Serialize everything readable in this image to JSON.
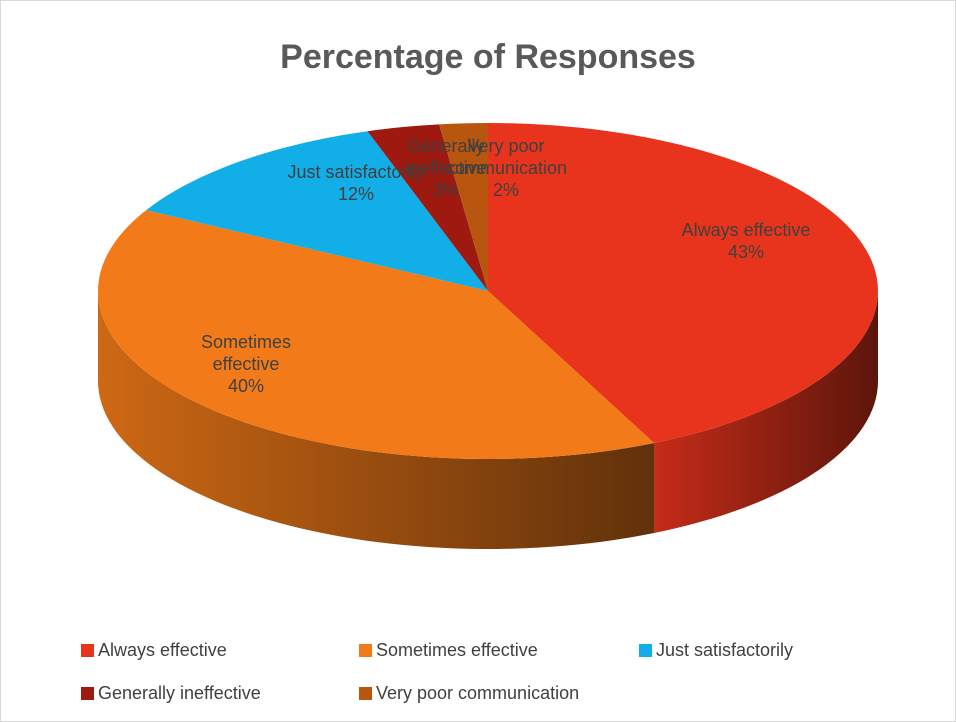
{
  "chart_data": {
    "type": "pie3d",
    "title": "Percentage of Responses",
    "categories": [
      "Always effective",
      "Sometimes effective",
      "Just satisfactorily",
      "Generally ineffective",
      "Very poor communication"
    ],
    "values": [
      43,
      40,
      12,
      3,
      2
    ],
    "value_labels": [
      "43%",
      "40%",
      "12%",
      "3%",
      "2%"
    ],
    "colors": [
      "#e8341c",
      "#f27a18",
      "#12aee8",
      "#9e1a10",
      "#b8560f"
    ],
    "legend": "bottom"
  }
}
